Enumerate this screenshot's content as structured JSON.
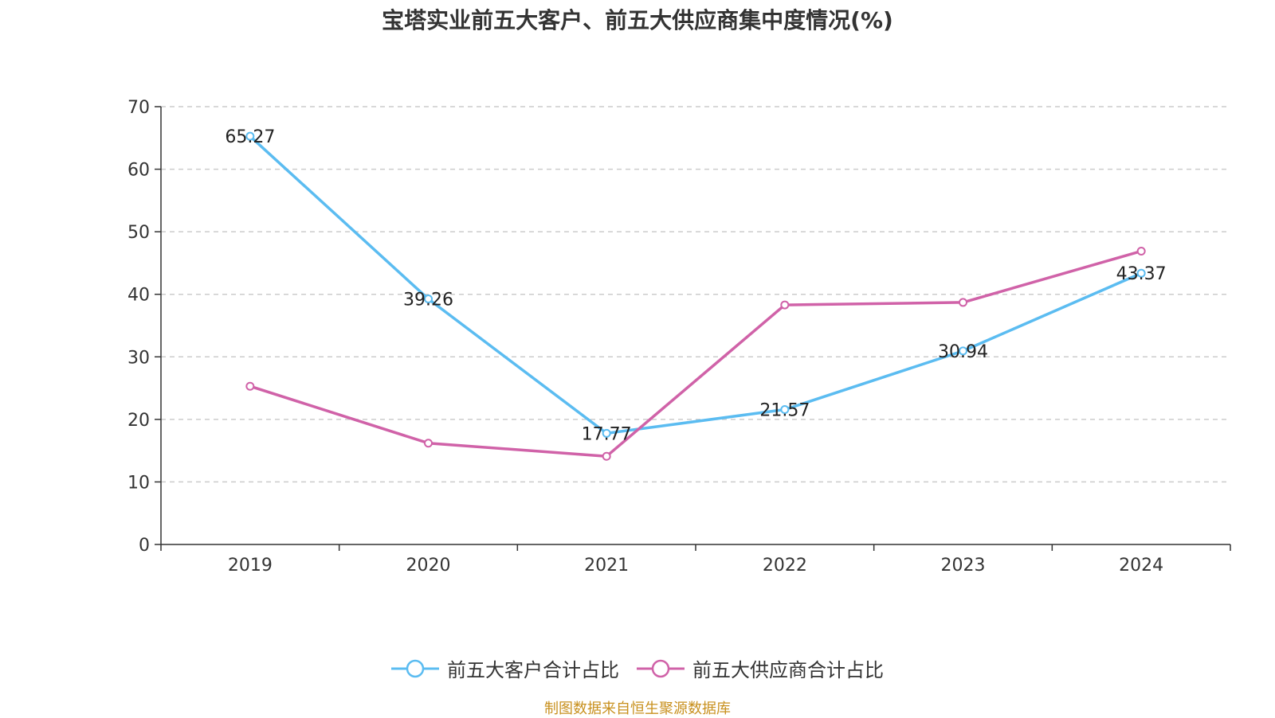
{
  "chart_data": {
    "type": "line",
    "title": "宝塔实业前五大客户、前五大供应商集中度情况(%)",
    "categories": [
      "2019",
      "2020",
      "2021",
      "2022",
      "2023",
      "2024"
    ],
    "ylim": [
      0,
      70
    ],
    "yticks": [
      0,
      10,
      20,
      30,
      40,
      50,
      60,
      70
    ],
    "grid": true,
    "legend_position": "bottom",
    "series": [
      {
        "name": "前五大客户合计占比",
        "color": "#5bbcf1",
        "values": [
          65.27,
          39.26,
          17.77,
          21.57,
          30.94,
          43.37
        ],
        "show_labels": true
      },
      {
        "name": "前五大供应商合计占比",
        "color": "#d062a8",
        "values": [
          25.3,
          16.2,
          14.1,
          38.3,
          38.7,
          46.9
        ],
        "show_labels": false
      }
    ]
  },
  "source": {
    "text": "制图数据来自恒生聚源数据库",
    "color": "#c8901e"
  }
}
